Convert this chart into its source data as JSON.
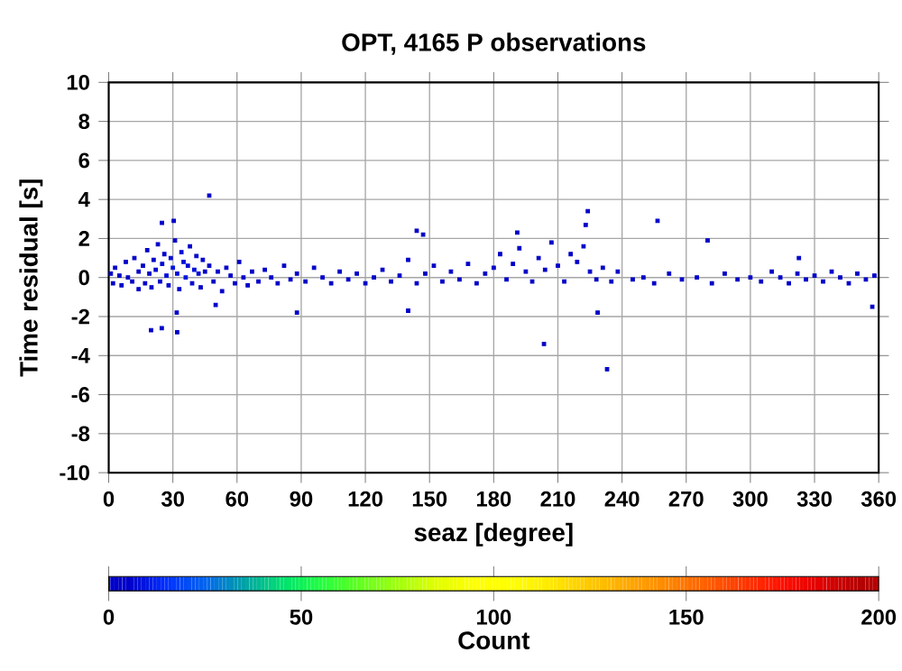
{
  "chart_data": {
    "type": "scatter",
    "title": "OPT, 4165 P observations",
    "xlabel": "seaz [degree]",
    "ylabel": "Time residual [s]",
    "clabel": "Count",
    "x": [
      1,
      2,
      3,
      5,
      6,
      8,
      9,
      11,
      12,
      14,
      14,
      16,
      17,
      18,
      19,
      20,
      21,
      22,
      23,
      24,
      25,
      26,
      27,
      28,
      29,
      30,
      31,
      32,
      33,
      34,
      35,
      36,
      37,
      38,
      39,
      40,
      41,
      42,
      43,
      44,
      45,
      47,
      49,
      51,
      53,
      55,
      57,
      59,
      61,
      63,
      65,
      67,
      70,
      73,
      76,
      79,
      82,
      85,
      88,
      92,
      96,
      100,
      104,
      108,
      112,
      116,
      120,
      124,
      128,
      132,
      136,
      140,
      144,
      148,
      152,
      156,
      160,
      164,
      168,
      172,
      176,
      180,
      183,
      186,
      189,
      192,
      195,
      198,
      201,
      204,
      207,
      210,
      213,
      216,
      219,
      222,
      225,
      228,
      231,
      235,
      238,
      245,
      250,
      255,
      262,
      268,
      275,
      282,
      288,
      294,
      300,
      305,
      310,
      314,
      318,
      322,
      326,
      330,
      334,
      338,
      342,
      346,
      350,
      354,
      358,
      47,
      30.4,
      24.9,
      19.8,
      24.8,
      32,
      31.8,
      50,
      88,
      144,
      147,
      140,
      224,
      223,
      256.6,
      280,
      203.5,
      228.6,
      233,
      357,
      322.7,
      191
    ],
    "values": [
      0.2,
      -0.3,
      0.5,
      0.1,
      -0.4,
      0.8,
      0.0,
      -0.2,
      1.0,
      0.3,
      -0.6,
      0.6,
      -0.3,
      1.4,
      0.2,
      -0.5,
      0.9,
      0.4,
      1.7,
      -0.2,
      0.7,
      1.2,
      0.1,
      -0.4,
      1.0,
      0.5,
      1.9,
      0.2,
      -0.6,
      1.3,
      0.8,
      0.0,
      0.6,
      1.6,
      -0.3,
      0.4,
      1.1,
      0.2,
      -0.5,
      0.9,
      0.3,
      0.6,
      -0.2,
      0.3,
      -0.7,
      0.5,
      0.1,
      -0.3,
      0.8,
      0.0,
      -0.4,
      0.3,
      -0.2,
      0.4,
      0.0,
      -0.3,
      0.6,
      -0.1,
      0.2,
      -0.2,
      0.5,
      0.0,
      -0.3,
      0.3,
      -0.1,
      0.2,
      -0.3,
      0.0,
      0.4,
      -0.2,
      0.1,
      0.9,
      -0.3,
      0.2,
      0.6,
      -0.2,
      0.3,
      -0.1,
      0.7,
      -0.3,
      0.2,
      0.5,
      1.2,
      -0.1,
      0.7,
      1.5,
      0.3,
      -0.2,
      1.0,
      0.4,
      1.8,
      0.6,
      -0.2,
      1.2,
      0.8,
      1.6,
      0.3,
      -0.1,
      0.5,
      -0.2,
      0.3,
      -0.1,
      0.0,
      -0.3,
      0.2,
      -0.1,
      0.0,
      -0.3,
      0.2,
      -0.1,
      0.0,
      -0.2,
      0.3,
      0.0,
      -0.3,
      0.2,
      -0.1,
      0.1,
      -0.2,
      0.3,
      0.0,
      -0.3,
      0.2,
      -0.1,
      0.1,
      4.2,
      2.9,
      2.8,
      -2.7,
      -2.6,
      -2.8,
      -1.8,
      -1.4,
      -1.8,
      2.4,
      2.2,
      -1.7,
      3.4,
      2.7,
      2.9,
      1.9,
      -3.4,
      -1.8,
      -4.7,
      -1.5,
      1.0,
      2.3
    ],
    "cvalues": [
      3,
      3,
      3,
      4,
      3,
      3,
      4,
      3,
      3,
      4,
      3,
      4,
      3,
      4,
      5,
      4,
      5,
      6,
      4,
      6,
      7,
      6,
      8,
      6,
      7,
      9,
      5,
      8,
      6,
      7,
      8,
      9,
      7,
      5,
      6,
      8,
      6,
      7,
      5,
      6,
      5,
      4,
      4,
      3,
      3,
      3,
      3,
      3,
      3,
      2,
      2,
      2,
      2,
      2,
      2,
      2,
      2,
      2,
      2,
      2,
      2,
      2,
      2,
      2,
      2,
      2,
      2,
      2,
      2,
      2,
      2,
      2,
      2,
      2,
      2,
      2,
      2,
      2,
      2,
      2,
      2,
      2,
      2,
      2,
      2,
      2,
      2,
      2,
      2,
      2,
      2,
      2,
      2,
      2,
      2,
      2,
      2,
      2,
      2,
      2,
      2,
      1,
      1,
      1,
      1,
      1,
      1,
      1,
      1,
      1,
      2,
      2,
      2,
      2,
      2,
      3,
      3,
      3,
      3,
      3,
      3,
      3,
      3,
      3,
      3,
      1,
      1,
      1,
      1,
      1,
      1,
      1,
      1,
      1,
      1,
      1,
      1,
      1,
      1,
      1,
      1,
      1,
      1,
      1,
      1,
      1,
      1
    ],
    "xlim": [
      0,
      360
    ],
    "ylim": [
      -10,
      10
    ],
    "xticks": [
      0,
      30,
      60,
      90,
      120,
      150,
      180,
      210,
      240,
      270,
      300,
      330,
      360
    ],
    "yticks": [
      -10,
      -8,
      -6,
      -4,
      -2,
      0,
      2,
      4,
      6,
      8,
      10
    ],
    "clim": [
      0,
      200
    ],
    "cticks": [
      0,
      50,
      100,
      150,
      200
    ],
    "grid": true,
    "marker": "square"
  }
}
